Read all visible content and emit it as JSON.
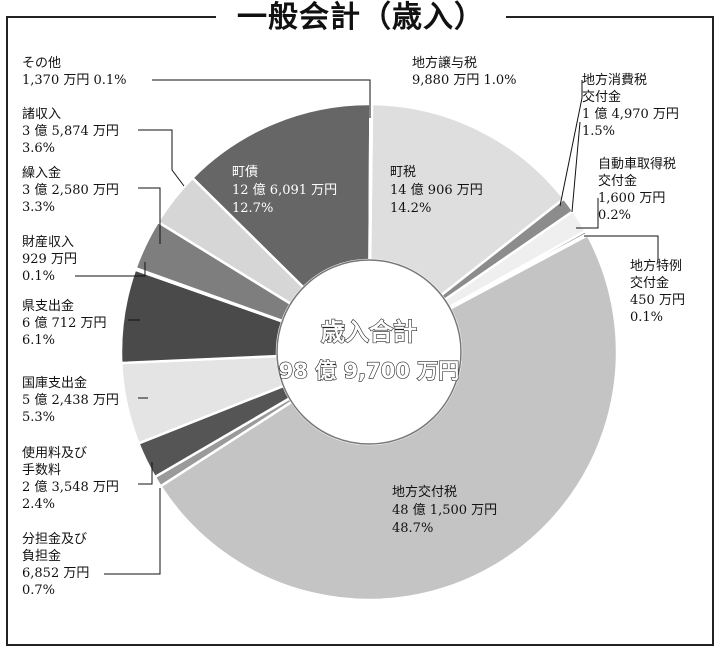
{
  "chart_data": {
    "type": "pie",
    "title": "一般会計（歳入）",
    "center_label": "歳入合計",
    "total": "98 億 9,700 万円",
    "slices": [
      {
        "key": "chozei",
        "name": "町税",
        "amount": "14 億 906 万円",
        "pct_label": "14.2%",
        "value": 14.2,
        "color": "#dedede"
      },
      {
        "key": "jyoyozei",
        "name": "地方譲与税",
        "amount": "9,880 万円 1.0%",
        "pct_label": "",
        "value": 1.0,
        "color": "#8c8c8c"
      },
      {
        "key": "shohizei",
        "name": "地方消費税交付金",
        "name_lines": [
          "地方消費税",
          "交付金"
        ],
        "amount": "1 億 4,970 万円",
        "pct_label": "1.5%",
        "value": 1.5,
        "color": "#efefef"
      },
      {
        "key": "jidosha",
        "name": "自動車取得税交付金",
        "name_lines": [
          "自動車取得税",
          "交付金"
        ],
        "amount": "1,600 万円",
        "pct_label": "0.2%",
        "value": 0.2,
        "color": "#555555"
      },
      {
        "key": "tokurei",
        "name": "地方特例交付金",
        "name_lines": [
          "地方特例",
          "交付金"
        ],
        "amount": "450 万円",
        "pct_label": "0.1%",
        "value": 0.1,
        "color": "#aaaaaa"
      },
      {
        "key": "kofuzei",
        "name": "地方交付税",
        "amount": "48 億 1,500 万円",
        "pct_label": "48.7%",
        "value": 48.7,
        "color": "#c4c4c4"
      },
      {
        "key": "buntan",
        "name": "分担金及び負担金",
        "name_lines": [
          "分担金及び",
          "負担金"
        ],
        "amount": "6,852 万円",
        "pct_label": "0.7%",
        "value": 0.7,
        "color": "#9a9a9a"
      },
      {
        "key": "shiyoryo",
        "name": "使用料及び手数料",
        "name_lines": [
          "使用料及び",
          "手数料"
        ],
        "amount": "2 億 3,548 万円",
        "pct_label": "2.4%",
        "value": 2.4,
        "color": "#555555"
      },
      {
        "key": "kokko",
        "name": "国庫支出金",
        "amount": "5 億 2,438 万円",
        "pct_label": "5.3%",
        "value": 5.3,
        "color": "#e4e4e4"
      },
      {
        "key": "kenshishutsu",
        "name": "県支出金",
        "amount": "6 億 712 万円",
        "pct_label": "6.1%",
        "value": 6.1,
        "color": "#4a4a4a"
      },
      {
        "key": "zaisan",
        "name": "財産収入",
        "amount": "929 万円",
        "pct_label": "0.1%",
        "value": 0.1,
        "color": "#b0b0b0"
      },
      {
        "key": "kurinyu",
        "name": "繰入金",
        "amount": "3 億 2,580 万円",
        "pct_label": "3.3%",
        "value": 3.3,
        "color": "#7e7e7e"
      },
      {
        "key": "shoshunyu",
        "name": "諸収入",
        "amount": "3 億 5,874 万円",
        "pct_label": "3.6%",
        "value": 3.6,
        "color": "#d6d6d6"
      },
      {
        "key": "chosai",
        "name": "町債",
        "amount": "12 億 6,091 万円",
        "pct_label": "12.7%",
        "value": 12.7,
        "color": "#666666"
      },
      {
        "key": "sonota",
        "name": "その他",
        "amount": "1,370 万円 0.1%",
        "pct_label": "",
        "value": 0.1,
        "color": "#333333"
      }
    ]
  }
}
